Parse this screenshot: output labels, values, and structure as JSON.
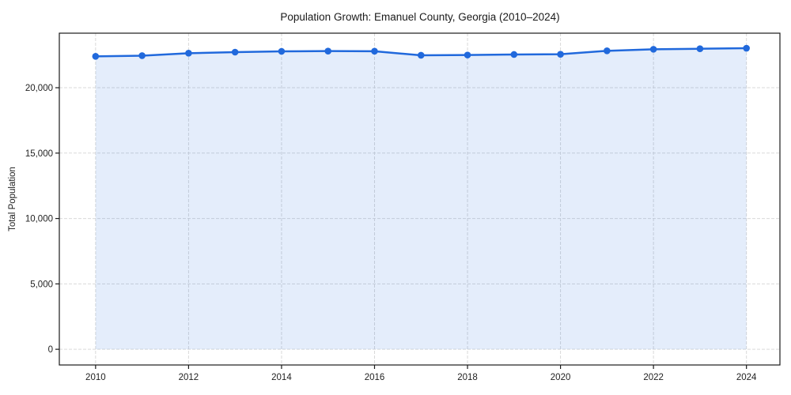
{
  "chart_data": {
    "type": "line",
    "title": "Population Growth: Emanuel County, Georgia (2010–2024)",
    "xlabel": "",
    "ylabel": "Total Population",
    "x": [
      2010,
      2011,
      2012,
      2013,
      2014,
      2015,
      2016,
      2017,
      2018,
      2019,
      2020,
      2021,
      2022,
      2023,
      2024
    ],
    "series": [
      {
        "name": "Total Population",
        "values": [
          22400,
          22450,
          22640,
          22720,
          22780,
          22800,
          22790,
          22480,
          22500,
          22540,
          22560,
          22820,
          22940,
          22980,
          23020
        ]
      }
    ],
    "xticks": [
      {
        "value": 2010,
        "label": "2010"
      },
      {
        "value": 2012,
        "label": "2012"
      },
      {
        "value": 2014,
        "label": "2014"
      },
      {
        "value": 2016,
        "label": "2016"
      },
      {
        "value": 2018,
        "label": "2018"
      },
      {
        "value": 2020,
        "label": "2020"
      },
      {
        "value": 2022,
        "label": "2022"
      },
      {
        "value": 2024,
        "label": "2024"
      }
    ],
    "yticks": [
      {
        "value": 0,
        "label": "0"
      },
      {
        "value": 5000,
        "label": "5,000"
      },
      {
        "value": 10000,
        "label": "10,000"
      },
      {
        "value": 15000,
        "label": "15,000"
      },
      {
        "value": 20000,
        "label": "20,000"
      }
    ],
    "xlim": [
      2009.22,
      2024.72
    ],
    "ylim": [
      -1200,
      24170
    ],
    "grid": true,
    "grid_style": "dashed",
    "legend": false,
    "area_fill_to_zero": true,
    "marker": "circle",
    "colors": {
      "line": "#2169dc",
      "marker": "#2169dc",
      "area_fill": "rgba(33,105,220,0.12)",
      "grid": "#d9d9d9",
      "spine": "#1a1a1a",
      "text": "#1a1a1a"
    }
  }
}
